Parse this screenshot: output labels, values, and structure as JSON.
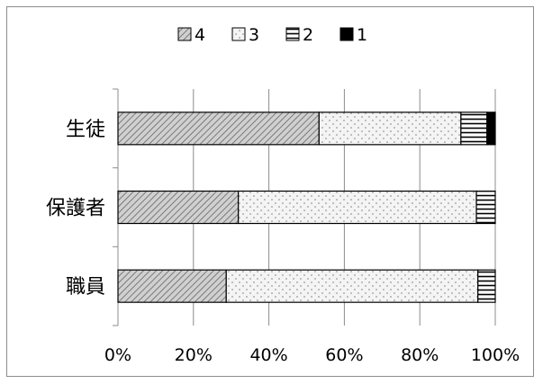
{
  "chart_data": {
    "type": "bar",
    "orientation": "horizontal",
    "stacked": "percent",
    "categories": [
      "生徒",
      "保護者",
      "職員"
    ],
    "series": [
      {
        "name": "4",
        "values": [
          53.3,
          31.9,
          28.7
        ],
        "color": "#d9d9d9",
        "pattern": "diagonal"
      },
      {
        "name": "3",
        "values": [
          37.6,
          63.1,
          66.7
        ],
        "color": "#f2f2f2",
        "pattern": "dots"
      },
      {
        "name": "2",
        "values": [
          6.9,
          5.0,
          4.6
        ],
        "color": "#ffffff",
        "pattern": "horizontal"
      },
      {
        "name": "1",
        "values": [
          2.2,
          0.0,
          0.0
        ],
        "color": "#000000",
        "pattern": "solid"
      }
    ],
    "x_ticks": [
      "0%",
      "20%",
      "40%",
      "60%",
      "80%",
      "100%"
    ],
    "xlim": [
      0,
      100
    ],
    "grid": true,
    "legend_position": "top"
  }
}
